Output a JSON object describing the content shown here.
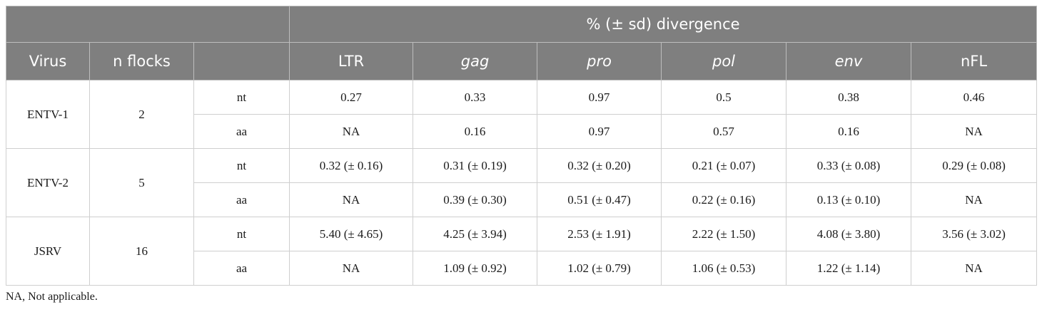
{
  "table": {
    "header_group": "% (± sd) divergence",
    "columns": {
      "virus": "Virus",
      "flocks": "n flocks",
      "type": "",
      "genes": [
        "LTR",
        "gag",
        "pro",
        "pol",
        "env",
        "nFL"
      ]
    },
    "rows": [
      {
        "virus": "ENTV-1",
        "flocks": "2",
        "nt": [
          "0.27",
          "0.33",
          "0.97",
          "0.5",
          "0.38",
          "0.46"
        ],
        "aa": [
          "NA",
          "0.16",
          "0.97",
          "0.57",
          "0.16",
          "NA"
        ]
      },
      {
        "virus": "ENTV-2",
        "flocks": "5",
        "nt": [
          "0.32 (± 0.16)",
          "0.31 (± 0.19)",
          "0.32 (± 0.20)",
          "0.21 (± 0.07)",
          "0.33 (± 0.08)",
          "0.29 (± 0.08)"
        ],
        "aa": [
          "NA",
          "0.39 (± 0.30)",
          "0.51 (± 0.47)",
          "0.22 (± 0.16)",
          "0.13 (± 0.10)",
          "NA"
        ]
      },
      {
        "virus": "JSRV",
        "flocks": "16",
        "nt": [
          "5.40 (± 4.65)",
          "4.25 (± 3.94)",
          "2.53 (± 1.91)",
          "2.22 (± 1.50)",
          "4.08 (± 3.80)",
          "3.56 (± 3.02)"
        ],
        "aa": [
          "NA",
          "1.09 (± 0.92)",
          "1.02 (± 0.79)",
          "1.06 (± 0.53)",
          "1.22 (± 1.14)",
          "NA"
        ]
      }
    ],
    "row_types": {
      "nt": "nt",
      "aa": "aa"
    }
  },
  "footnote": "NA, Not applicable."
}
